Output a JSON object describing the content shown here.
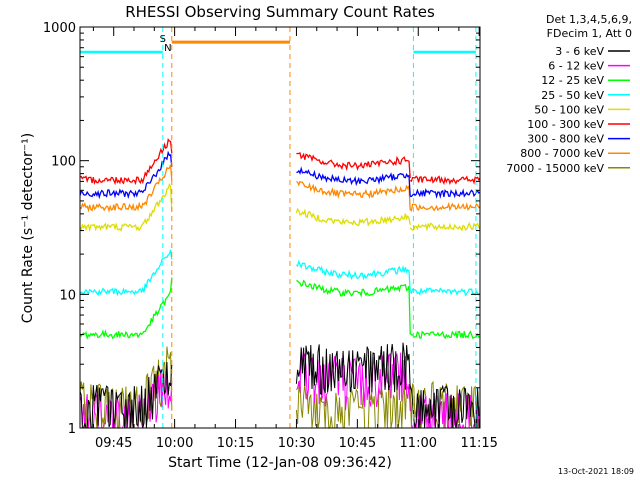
{
  "chart_data": {
    "type": "line",
    "title": "RHESSI Observing Summary Count Rates",
    "xlabel": "Start Time (12-Jan-08 09:36:42)",
    "ylabel": "Count Rate (s⁻¹ detector⁻¹)",
    "y_scale": "log",
    "ylim": [
      1,
      1000
    ],
    "y_ticks": [
      {
        "value": 1,
        "label": "1"
      },
      {
        "value": 10,
        "label": "10"
      },
      {
        "value": 100,
        "label": "100"
      },
      {
        "value": 1000,
        "label": "1000"
      }
    ],
    "xlim_minutes": [
      36.7,
      135.2
    ],
    "x_ticks": [
      {
        "value": 45,
        "label": "09:45"
      },
      {
        "value": 60,
        "label": "10:00"
      },
      {
        "value": 75,
        "label": "10:15"
      },
      {
        "value": 90,
        "label": "10:30"
      },
      {
        "value": 105,
        "label": "10:45"
      },
      {
        "value": 120,
        "label": "11:00"
      },
      {
        "value": 135,
        "label": "11:15"
      }
    ],
    "legend": {
      "placement": "right",
      "header_lines": [
        "Det 1,3,4,5,6,9,",
        "FDecim 1, Att 0"
      ]
    },
    "series": [
      {
        "name": "3 - 6 keV",
        "color": "#000000",
        "quiet": 3.5,
        "end": 1.5
      },
      {
        "name": "6 - 12 keV",
        "color": "#ff00ff",
        "quiet": 3.0,
        "end": 1.3
      },
      {
        "name": "12 - 25 keV",
        "color": "#00ff00",
        "quiet": 12.5,
        "end": 5.0
      },
      {
        "name": "25 - 50 keV",
        "color": "#00ffff",
        "quiet": 17.0,
        "end": 10.5
      },
      {
        "name": "50 - 100 keV",
        "color": "#dddd00",
        "quiet": 42.0,
        "end": 32.0
      },
      {
        "name": "100 - 300 keV",
        "color": "#ff0000",
        "quiet": 112.0,
        "end": 72.0
      },
      {
        "name": "300 - 800 keV",
        "color": "#0000ff",
        "quiet": 86.0,
        "end": 57.0
      },
      {
        "name": "800 - 7000 keV",
        "color": "#ff8800",
        "quiet": 68.0,
        "end": 45.0
      },
      {
        "name": "7000 - 15000 keV",
        "color": "#888800",
        "quiet": 1.7,
        "end": 1.6
      }
    ],
    "segments_minutes": [
      [
        36.7,
        59.3
      ],
      [
        90.0,
        118.0
      ],
      [
        118.0,
        135.2
      ]
    ],
    "saa_markers_minutes": [
      57.1,
      118.8,
      134.2
    ],
    "night_markers_minutes": [
      59.3,
      88.4
    ],
    "markers_labels": {
      "saa": "S",
      "night": "N"
    },
    "saa_level": 650,
    "night_level": 770
  },
  "footer_date": "13-Oct-2021 18:09"
}
